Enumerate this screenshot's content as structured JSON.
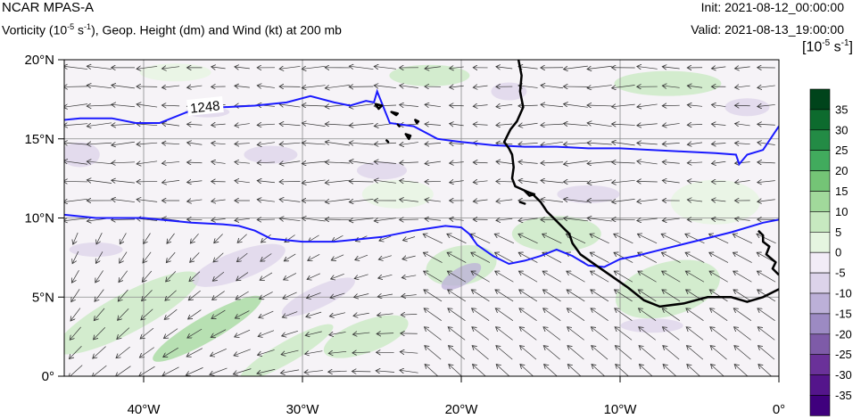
{
  "header": {
    "model": "NCAR MPAS-A",
    "init": "Init: 2021-08-12_00:00:00",
    "valid": "Valid: 2021-08-13_19:00:00",
    "title_prefix": "Vorticity (10",
    "title_exp1": "-5",
    "title_mid": " s",
    "title_exp2": "-1",
    "title_suffix": "), Geop. Height (dm) and Wind (kt) at 200 mb"
  },
  "units_label": {
    "base": "[10",
    "exp1": "-5",
    "mid": " s",
    "exp2": "-1",
    "end": "]"
  },
  "map": {
    "lat_labels": [
      "20°N",
      "15°N",
      "10°N",
      "5°N",
      "0°"
    ],
    "lat_values": [
      20,
      15,
      10,
      5,
      0
    ],
    "lon_labels": [
      "40°W",
      "30°W",
      "20°W",
      "10°W",
      "0°"
    ],
    "lon_values": [
      -40,
      -30,
      -20,
      -10,
      0
    ],
    "extent": {
      "lon_min": -45,
      "lon_max": 0,
      "lat_min": 0,
      "lat_max": 20
    },
    "contour_label": "1248",
    "colors": {
      "height_contour": "#1a1aff",
      "coastline": "#000000",
      "grid": "#8a8a8a",
      "wind_arrow": "#333333"
    },
    "height_contours": [
      {
        "points": [
          [
            -45,
            16.2
          ],
          [
            -44,
            16.3
          ],
          [
            -42,
            16.3
          ],
          [
            -40.5,
            16.0
          ],
          [
            -39,
            16.0
          ],
          [
            -37,
            16.8
          ],
          [
            -35,
            17.0
          ],
          [
            -33,
            17.1
          ],
          [
            -31,
            17.3
          ],
          [
            -29.5,
            17.7
          ],
          [
            -28,
            17.3
          ],
          [
            -27,
            17.1
          ],
          [
            -26,
            17.4
          ],
          [
            -25.5,
            17.3
          ],
          [
            -25.3,
            18.0
          ],
          [
            -24.5,
            16.0
          ],
          [
            -23,
            15.8
          ],
          [
            -21.5,
            15.0
          ],
          [
            -20,
            14.8
          ],
          [
            -18,
            14.6
          ],
          [
            -16,
            14.5
          ],
          [
            -14,
            14.5
          ],
          [
            -12,
            14.4
          ],
          [
            -10,
            14.4
          ],
          [
            -8,
            14.3
          ],
          [
            -6,
            14.2
          ],
          [
            -4,
            14.1
          ],
          [
            -2.7,
            14.0
          ],
          [
            -2.5,
            13.4
          ],
          [
            -2,
            14.0
          ],
          [
            -1,
            14.3
          ],
          [
            0,
            15.8
          ]
        ]
      },
      {
        "points": [
          [
            -45,
            10.2
          ],
          [
            -43,
            10.0
          ],
          [
            -40,
            10.0
          ],
          [
            -37,
            9.7
          ],
          [
            -35,
            9.6
          ],
          [
            -34,
            9.5
          ],
          [
            -33,
            9.2
          ],
          [
            -32,
            8.7
          ],
          [
            -30,
            8.5
          ],
          [
            -28,
            8.5
          ],
          [
            -27,
            8.6
          ],
          [
            -25,
            8.8
          ],
          [
            -23,
            9.2
          ],
          [
            -21,
            9.5
          ],
          [
            -20,
            9.4
          ],
          [
            -19.5,
            9.0
          ],
          [
            -19,
            8.3
          ],
          [
            -18,
            7.6
          ],
          [
            -17,
            7.1
          ],
          [
            -16,
            7.3
          ],
          [
            -15,
            7.6
          ],
          [
            -14,
            8.0
          ],
          [
            -13,
            7.6
          ],
          [
            -12,
            7.0
          ],
          [
            -11,
            6.9
          ],
          [
            -10,
            7.4
          ],
          [
            -9,
            7.6
          ],
          [
            -7,
            8.1
          ],
          [
            -5,
            8.6
          ],
          [
            -3,
            9.1
          ],
          [
            -1,
            9.7
          ],
          [
            0,
            9.9
          ]
        ]
      }
    ],
    "coastline": [
      [
        [
          -16.4,
          20.0
        ],
        [
          -16.2,
          19.0
        ],
        [
          -16.3,
          18.0
        ],
        [
          -16.1,
          17.0
        ],
        [
          -16.5,
          16.1
        ],
        [
          -16.9,
          15.6
        ],
        [
          -17.3,
          14.8
        ],
        [
          -17.0,
          14.4
        ],
        [
          -16.8,
          14.0
        ],
        [
          -16.7,
          13.2
        ],
        [
          -16.8,
          12.5
        ],
        [
          -16.6,
          12.0
        ],
        [
          -15.5,
          11.5
        ],
        [
          -15.0,
          11.0
        ],
        [
          -14.6,
          10.4
        ],
        [
          -14.0,
          9.8
        ],
        [
          -13.2,
          9.0
        ],
        [
          -13.0,
          8.4
        ],
        [
          -12.5,
          7.7
        ],
        [
          -11.5,
          7.0
        ],
        [
          -10.5,
          6.3
        ],
        [
          -9.5,
          5.6
        ],
        [
          -8.5,
          4.8
        ],
        [
          -7.5,
          4.4
        ],
        [
          -6.0,
          4.6
        ],
        [
          -4.5,
          5.0
        ],
        [
          -3.0,
          5.0
        ],
        [
          -2.0,
          4.7
        ],
        [
          -1.0,
          5.0
        ],
        [
          0.0,
          5.5
        ]
      ],
      [
        [
          -1.3,
          9.2
        ],
        [
          -1.0,
          8.9
        ],
        [
          -1.0,
          8.5
        ],
        [
          -0.6,
          8.2
        ],
        [
          -0.8,
          7.7
        ],
        [
          -0.2,
          7.2
        ],
        [
          -0.4,
          6.8
        ],
        [
          0.0,
          6.4
        ]
      ]
    ],
    "islands": [
      [
        [
          -25.4,
          17.2
        ],
        [
          -25.0,
          17.1
        ],
        [
          -25.2,
          16.9
        ]
      ],
      [
        [
          -24.4,
          16.7
        ],
        [
          -24.0,
          16.6
        ],
        [
          -24.1,
          16.5
        ]
      ],
      [
        [
          -24.0,
          15.9
        ],
        [
          -23.9,
          15.8
        ]
      ],
      [
        [
          -22.9,
          16.2
        ],
        [
          -22.7,
          16.1
        ],
        [
          -22.8,
          16.0
        ]
      ],
      [
        [
          -23.5,
          15.3
        ],
        [
          -23.3,
          15.0
        ],
        [
          -23.2,
          15.2
        ]
      ],
      [
        [
          -24.7,
          14.9
        ],
        [
          -24.6,
          14.8
        ]
      ],
      [
        [
          -16.0,
          11.7
        ],
        [
          -15.4,
          11.5
        ],
        [
          -15.7,
          11.4
        ]
      ],
      [
        [
          -16.3,
          11.0
        ],
        [
          -16.0,
          10.9
        ]
      ]
    ]
  },
  "colorbar": {
    "labels": [
      "35",
      "30",
      "25",
      "20",
      "15",
      "10",
      "5",
      "0",
      "-5",
      "-10",
      "-15",
      "-20",
      "-25",
      "-30",
      "-35"
    ],
    "colors": [
      "#00441b",
      "#0d6b2e",
      "#238b45",
      "#41ab5d",
      "#74c476",
      "#a1d99b",
      "#c7e9c0",
      "#e5f5e0",
      "#f2ecf7",
      "#dcd3ea",
      "#bcb0d8",
      "#9c8ac3",
      "#7e5ba8",
      "#6a3199",
      "#54158b",
      "#3f007d"
    ]
  }
}
